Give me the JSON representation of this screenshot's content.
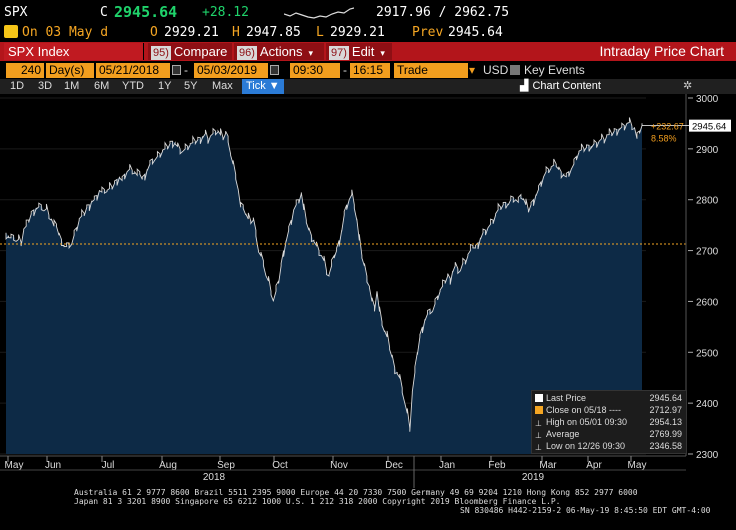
{
  "quote": {
    "ticker": "SPX",
    "c_label": "C",
    "last": "2945.64",
    "change": "+28.12",
    "range": "2917.96 / 2962.75",
    "date_line": "On 03 May d",
    "open_label": "O",
    "open": "2929.21",
    "high_label": "H",
    "high": "2947.85",
    "low_label": "L",
    "low": "2929.21",
    "prev_label": "Prev",
    "prev": "2945.64"
  },
  "titlebar": {
    "security": "SPX Index",
    "compare": {
      "num": "95)",
      "label": "Compare"
    },
    "actions": {
      "num": "96)",
      "label": "Actions"
    },
    "edit": {
      "num": "97)",
      "label": "Edit"
    },
    "title": "Intraday Price Chart"
  },
  "params": {
    "days": "240",
    "days_label": "Day(s)",
    "start_date": "05/21/2018",
    "end_date": "05/03/2019",
    "start_time": "09:30",
    "end_time": "16:15",
    "event": "Trade",
    "currency": "USD",
    "key_events": "Key Events"
  },
  "periods": [
    "1D",
    "3D",
    "1M",
    "6M",
    "YTD",
    "1Y",
    "5Y",
    "Max",
    "Tick"
  ],
  "active_period": "Tick",
  "chart_content_label": "Chart Content",
  "colors": {
    "area_fill": "#0d2a46",
    "line": "#d8d8d8",
    "close_line": "#f5a623",
    "accent": "#f29e1e",
    "titlebar": "#b3151b"
  },
  "chart_data": {
    "type": "area",
    "ylim": [
      2300,
      3000
    ],
    "yticks": [
      2300,
      2400,
      2500,
      2600,
      2700,
      2800,
      2900,
      3000
    ],
    "xticks": [
      "May",
      "Jun",
      "Jul",
      "Aug",
      "Sep",
      "Oct",
      "Nov",
      "Dec",
      "Jan",
      "Feb",
      "Mar",
      "Apr",
      "May"
    ],
    "year_labels": [
      "2018",
      "2019"
    ],
    "last_price_tag": "2945.64",
    "change_tag": "+232.67",
    "pct_tag": "8.58%",
    "close_reference": 2712.97,
    "series": [
      {
        "values": [
          2735,
          2728,
          2725,
          2730,
          2718,
          2722,
          2716,
          2740,
          2748,
          2760,
          2772,
          2780,
          2784,
          2786,
          2790,
          2778,
          2782,
          2770,
          2760,
          2748,
          2752,
          2730,
          2722,
          2710,
          2708,
          2715,
          2712,
          2730,
          2745,
          2760,
          2768,
          2773,
          2785,
          2790,
          2798,
          2800,
          2808,
          2818,
          2815,
          2820,
          2816,
          2822,
          2825,
          2832,
          2840,
          2845,
          2838,
          2850,
          2855,
          2860,
          2858,
          2852,
          2848,
          2855,
          2840,
          2850,
          2860,
          2870,
          2880,
          2878,
          2885,
          2890,
          2895,
          2900,
          2904,
          2910,
          2915,
          2912,
          2905,
          2900,
          2895,
          2900,
          2905,
          2908,
          2912,
          2915,
          2918,
          2922,
          2925,
          2930,
          2920,
          2925,
          2930,
          2935,
          2933,
          2928,
          2922,
          2930,
          2925,
          2890,
          2870,
          2850,
          2820,
          2785,
          2790,
          2770,
          2762,
          2758,
          2760,
          2740,
          2700,
          2690,
          2680,
          2650,
          2640,
          2620,
          2600,
          2620,
          2640,
          2670,
          2700,
          2720,
          2740,
          2760,
          2780,
          2790,
          2800,
          2812,
          2780,
          2760,
          2740,
          2730,
          2720,
          2710,
          2700,
          2690,
          2680,
          2660,
          2650,
          2670,
          2690,
          2700,
          2720,
          2740,
          2770,
          2790,
          2800,
          2810,
          2790,
          2760,
          2720,
          2690,
          2670,
          2650,
          2630,
          2600,
          2590,
          2620,
          2580,
          2560,
          2540,
          2530,
          2510,
          2490,
          2470,
          2460,
          2450,
          2430,
          2400,
          2380,
          2351,
          2420,
          2460,
          2500,
          2530,
          2550,
          2565,
          2575,
          2585,
          2580,
          2595,
          2610,
          2620,
          2630,
          2640,
          2650,
          2645,
          2660,
          2670,
          2665,
          2660,
          2675,
          2680,
          2690,
          2700,
          2710,
          2705,
          2715,
          2725,
          2735,
          2740,
          2745,
          2752,
          2760,
          2770,
          2780,
          2785,
          2790,
          2795,
          2792,
          2800,
          2805,
          2800,
          2795,
          2810,
          2800,
          2790,
          2780,
          2790,
          2800,
          2810,
          2820,
          2835,
          2845,
          2855,
          2860,
          2862,
          2868,
          2870,
          2860,
          2855,
          2850,
          2845,
          2855,
          2860,
          2870,
          2885,
          2893,
          2898,
          2900,
          2903,
          2907,
          2905,
          2910,
          2912,
          2915,
          2920,
          2918,
          2925,
          2928,
          2930,
          2935,
          2938,
          2940,
          2943,
          2946,
          2950,
          2952,
          2945,
          2940,
          2920,
          2935,
          2945.64
        ]
      }
    ]
  },
  "legend": [
    {
      "label": "Last Price",
      "value": "2945.64",
      "swatch": "#ffffff"
    },
    {
      "label": "Close on 05/18 ----",
      "value": "2712.97",
      "swatch": "#f5a623"
    },
    {
      "label": "High on 05/01 09:30",
      "value": "2954.13",
      "swatch": ""
    },
    {
      "label": "Average",
      "value": "2769.99",
      "swatch": ""
    },
    {
      "label": "Low on 12/26 09:30",
      "value": "2346.58",
      "swatch": ""
    }
  ],
  "footer": {
    "line1": "Australia 61 2 9777 8600 Brazil 5511 2395 9000 Europe 44 20 7330 7500 Germany 49 69 9204 1210 Hong Kong 852 2977 6000",
    "line2": "Japan 81 3 3201 8900          Singapore 65 6212 1000          U.S. 1 212 318 2000          Copyright 2019 Bloomberg Finance L.P.",
    "line3": "SN 830486 H442-2159-2 06-May-19  8:45:50 EDT  GMT-4:00"
  }
}
